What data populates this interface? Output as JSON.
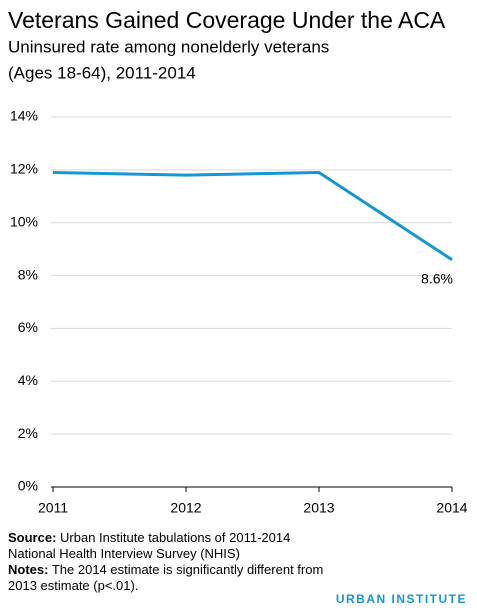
{
  "chart_data": {
    "type": "line",
    "title": "Veterans Gained Coverage Under the ACA",
    "subtitle": [
      "Uninsured rate among nonelderly veterans",
      "(Ages 18-64), 2011-2014"
    ],
    "x": [
      2011,
      2012,
      2013,
      2014
    ],
    "xlim": [
      2011,
      2014
    ],
    "xticks": [
      2011,
      2012,
      2013,
      2014
    ],
    "series": [
      {
        "name": "Uninsured rate",
        "color": "#1696d2",
        "values": [
          11.9,
          11.8,
          11.9,
          8.6
        ],
        "value_labels": [
          null,
          null,
          null,
          "8.6%"
        ]
      }
    ],
    "ylim": [
      0,
      14
    ],
    "yticks": [
      {
        "value": 0,
        "label": "0%"
      },
      {
        "value": 2,
        "label": "2%"
      },
      {
        "value": 4,
        "label": "4%"
      },
      {
        "value": 6,
        "label": "6%"
      },
      {
        "value": 8,
        "label": "8%"
      },
      {
        "value": 10,
        "label": "10%"
      },
      {
        "value": 12,
        "label": "12%"
      },
      {
        "value": 14,
        "label": "14%"
      }
    ],
    "grid": true,
    "source_label": "Source:",
    "source": "Urban Institute tabulations of 2011-2014 National Health Interview Survey (NHIS)",
    "notes_label": "Notes:",
    "notes": "The 2014 estimate is significantly different from 2013 estimate (p<.01).",
    "brand": "URBAN INSTITUTE"
  }
}
